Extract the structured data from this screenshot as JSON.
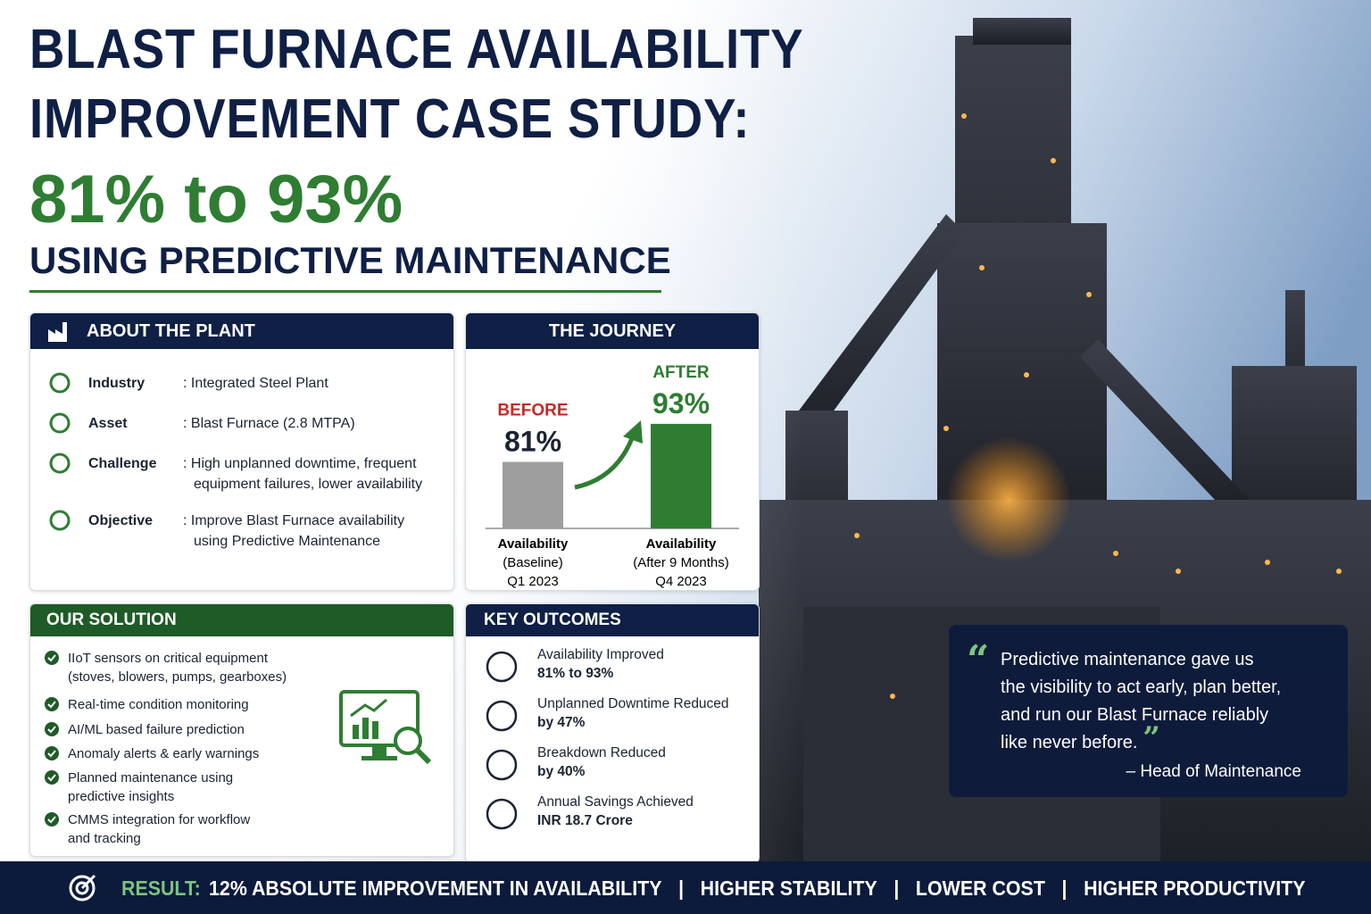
{
  "header": {
    "title_lines": [
      "BLAST FURNACE AVAILABILITY",
      "IMPROVEMENT CASE STUDY:"
    ],
    "highlight": "81% to 93%",
    "subtitle": "USING PREDICTIVE MAINTENANCE"
  },
  "about": {
    "title": "ABOUT THE PLANT",
    "rows": [
      {
        "label": "Industry",
        "lines": [
          ": Integrated Steel Plant"
        ]
      },
      {
        "label": "Asset",
        "lines": [
          ": Blast Furnace (2.8 MTPA)"
        ]
      },
      {
        "label": "Challenge",
        "lines": [
          ": High unplanned downtime, frequent",
          "equipment failures, lower availability"
        ]
      },
      {
        "label": "Objective",
        "lines": [
          ": Improve Blast Furnace availability",
          "using Predictive Maintenance"
        ]
      }
    ]
  },
  "journey": {
    "title": "THE JOURNEY",
    "ylim": [
      60,
      100
    ],
    "bars": [
      {
        "tag": "BEFORE",
        "value": 81,
        "value_label": "81%",
        "color": "#9e9e9e",
        "tag_color": "#c62828",
        "caption": [
          "Availability",
          "(Baseline)",
          "Q1 2023"
        ]
      },
      {
        "tag": "AFTER",
        "value": 93,
        "value_label": "93%",
        "color": "#2e7d32",
        "tag_color": "#2e7d32",
        "caption": [
          "Availability",
          "(After 9 Months)",
          "Q4 2023"
        ]
      }
    ]
  },
  "solution": {
    "title": "OUR SOLUTION",
    "items": [
      [
        "IIoT sensors on critical equipment",
        "(stoves, blowers, pumps, gearboxes)"
      ],
      [
        "Real-time condition monitoring"
      ],
      [
        "AI/ML based failure prediction"
      ],
      [
        "Anomaly alerts & early warnings"
      ],
      [
        "Planned maintenance using",
        "predictive insights"
      ],
      [
        "CMMS integration for workflow",
        "and tracking"
      ]
    ]
  },
  "outcomes": {
    "title": "KEY OUTCOMES",
    "items": [
      {
        "label": "Availability Improved",
        "value": "81% to 93%"
      },
      {
        "label": "Unplanned Downtime Reduced",
        "value": "by 47%"
      },
      {
        "label": "Breakdown Reduced",
        "value": "by 40%"
      },
      {
        "label": "Annual Savings Achieved",
        "value": "INR 18.7 Crore"
      }
    ]
  },
  "quote": {
    "lines": [
      "Predictive maintenance gave us",
      "the visibility to act early, plan better,",
      "and run our Blast Furnace reliably",
      "like never before."
    ],
    "author": "– Head of Maintenance"
  },
  "result": {
    "label": "RESULT:",
    "items": [
      "12% ABSOLUTE IMPROVEMENT IN AVAILABILITY",
      "HIGHER STABILITY",
      "LOWER COST",
      "HIGHER PRODUCTIVITY"
    ]
  }
}
